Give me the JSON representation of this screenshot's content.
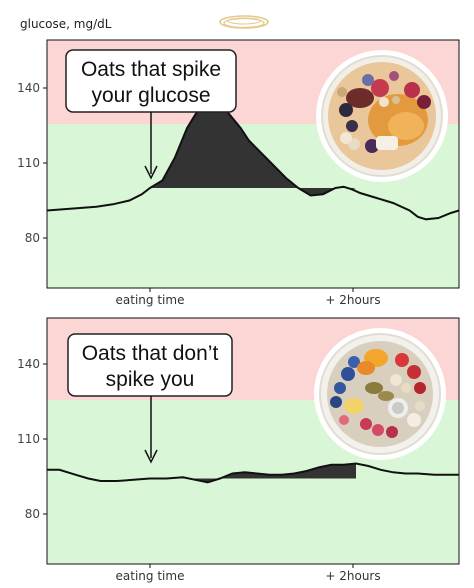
{
  "ylabel": "glucose, mg/dL",
  "colors": {
    "high_zone": "#fcd5d5",
    "normal_zone": "#d9f7d6",
    "frame": "#111111",
    "spike_fill": "#333333",
    "halo": "#e3c98a"
  },
  "icons": {
    "logo": "halo-icon",
    "bowl_top": "fruit-oat-bowl",
    "bowl_bottom": "fruit-seed-bowl"
  },
  "chart_data": [
    {
      "type": "area",
      "ylabel": "glucose, mg/dL",
      "yticks": [
        80,
        110,
        140
      ],
      "ylim": [
        62,
        158
      ],
      "threshold": 126,
      "zones": [
        {
          "range": [
            126,
            158
          ],
          "color": "#fcd5d5"
        },
        {
          "range": [
            62,
            126
          ],
          "color": "#d9f7d6"
        }
      ],
      "xticks": [
        "eating time",
        "+ 2hours"
      ],
      "xtick_positions": [
        0.25,
        0.75
      ],
      "grid": false,
      "annotation": {
        "line1": "Oats that spike",
        "line2": "your glucose",
        "target_x": 0.25
      },
      "baseline": 100,
      "series": [
        {
          "x": [
            0,
            0.04,
            0.08,
            0.12,
            0.16,
            0.2,
            0.23,
            0.25,
            0.28,
            0.31,
            0.34,
            0.37,
            0.4,
            0.42,
            0.44,
            0.47,
            0.49,
            0.52,
            0.55,
            0.58,
            0.61,
            0.64,
            0.67,
            0.7,
            0.72,
            0.74,
            0.76,
            0.8,
            0.84,
            0.88,
            0.9,
            0.92,
            0.95,
            0.98,
            1.0
          ],
          "y": [
            91,
            91.5,
            92,
            92.5,
            93.5,
            95,
            97.5,
            100,
            103,
            112,
            124,
            132,
            137.5,
            135,
            130,
            124,
            119,
            114,
            109,
            104,
            100,
            97,
            97.5,
            100,
            100.5,
            99.5,
            98,
            96,
            94,
            91,
            88.5,
            87.5,
            88,
            90,
            91
          ]
        }
      ]
    },
    {
      "type": "area",
      "ylabel": "",
      "yticks": [
        80,
        110,
        140
      ],
      "ylim": [
        62,
        158
      ],
      "threshold": 126,
      "xticks": [
        "eating time",
        "+ 2hours"
      ],
      "xtick_positions": [
        0.25,
        0.75
      ],
      "grid": false,
      "annotation": {
        "line1": "Oats that don’t",
        "line2": "spike you",
        "target_x": 0.25
      },
      "baseline": 95,
      "series": [
        {
          "x": [
            0,
            0.03,
            0.07,
            0.1,
            0.13,
            0.17,
            0.21,
            0.25,
            0.29,
            0.33,
            0.36,
            0.39,
            0.42,
            0.45,
            0.48,
            0.51,
            0.54,
            0.57,
            0.6,
            0.63,
            0.66,
            0.69,
            0.72,
            0.75,
            0.78,
            0.81,
            0.84,
            0.87,
            0.9,
            0.94,
            1.0
          ],
          "y": [
            98.5,
            98.5,
            96.5,
            95,
            94,
            94,
            94.5,
            95,
            95,
            95.5,
            94.5,
            93.5,
            95,
            97,
            97.5,
            97,
            96.5,
            96.5,
            97,
            98,
            99.5,
            100.5,
            100.5,
            101,
            100,
            98.5,
            97.5,
            97,
            97,
            96.5,
            96.5
          ]
        }
      ]
    }
  ]
}
